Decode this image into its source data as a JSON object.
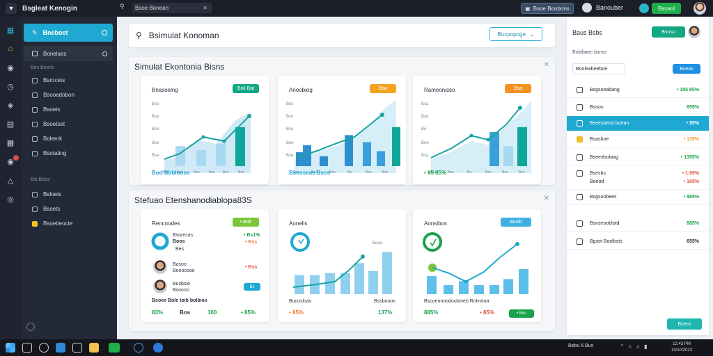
{
  "topbar": {
    "app_title": "Bsgleat Kenogin",
    "search_field": "Bsoe   Bonean",
    "button_1": "Bsoe Boobons",
    "user_name": "Banouber",
    "button_2": "Bsceol",
    "colors": {
      "accent_green": "#1fae4b",
      "bar_bg": "#1b1f2a"
    }
  },
  "sidebar": {
    "active_item": "Bneboet",
    "second_item": "Bonelaes",
    "group_1": "Bes Bnerls",
    "group_1_items": [
      "Bsrocets",
      "Bsooedobon",
      "Bsoets",
      "Bsoetset",
      "Boleerk",
      "Bsotating"
    ],
    "group_2": "Bsi  Boos",
    "group_2_items": [
      "Bsloets",
      "Bsoets",
      "Bsoetteocte"
    ]
  },
  "main": {
    "search_title": "Bsimulat Konoman",
    "dropdown_label": "Bucpopoge",
    "panel_1": {
      "title": "Simulat Ekontonia Bisns",
      "cards": [
        {
          "title": "Bnasoelng",
          "badge": "Bsk Bat",
          "badge_color": "#13a884",
          "footer": "Boo  Bbblooss",
          "y_ticks": [
            "Bso",
            "Bse",
            "Bse",
            "Bse",
            "Bse"
          ],
          "x_ticks": [
            "Bss",
            "Bss",
            "Bes",
            "Boe",
            "Bos",
            "Bse"
          ]
        },
        {
          "title": "Anoobiog",
          "badge": "Bsa",
          "badge_color": "#f3a220",
          "footer": "Bsosseas  Bsos",
          "y_ticks": [
            "Bos",
            "Bso",
            "Bse",
            "Boe",
            "Bse"
          ],
          "x_ticks": [
            "Bss",
            "Bos",
            "Boo",
            "Bo",
            "Bes",
            "Bse"
          ]
        },
        {
          "title": "Rameonisso",
          "badge": "Bsa",
          "badge_color": "#f39220",
          "footer": "• ¥5 85%",
          "y_ticks": [
            "Bsa",
            "Bse",
            "Bo",
            "Bee",
            "Bsa"
          ],
          "x_ticks": [
            "Bos",
            "Bos",
            "Bo",
            "Bee",
            "Bes",
            "Bos"
          ]
        }
      ]
    },
    "panel_2": {
      "title": "Stefuao Etenshanodiablopa83S",
      "cards": [
        {
          "title": "Rencnodes",
          "badge": "• Bob",
          "badge_color": "#7bc63a",
          "rows": [
            {
              "name": "Bsorecas",
              "sub": "Boos",
              "value": "• Bs1%",
              "value_color": "green",
              "value2": "• Bss",
              "value2_color": "orange",
              "extra": "Bes"
            },
            {
              "name": "Basoo",
              "sub": "Boooceao",
              "value": "• Bss",
              "value_color": "red"
            },
            {
              "name": "Busbsie",
              "sub": "Bsoooo",
              "value": "Bs",
              "value_color": "badge"
            }
          ],
          "foot_label": "Bsoee Bole toib bolbios",
          "foot_values": [
            "83%",
            "Bos",
            "100",
            "• 85%"
          ],
          "foot_colors": [
            "green",
            "dark",
            "green",
            "green"
          ]
        },
        {
          "title": "Aonelis",
          "badge": "",
          "badge_color": "",
          "chart_label": "Boeo",
          "foot_left": "Bucosloas",
          "foot_right": "Bssbooos",
          "foot_values": [
            "• 85%",
            "137%"
          ],
          "foot_colors": [
            "orange",
            "green"
          ]
        },
        {
          "title": "Aonsibos",
          "badge": "Bosib",
          "badge_color": "#3bb0e0",
          "foot_left": "Bscoennoodouloneb Rolvotoa",
          "foot_values": [
            "885%",
            "• 85%",
            "• Bos"
          ],
          "foot_colors": [
            "green",
            "red",
            "badge"
          ]
        }
      ]
    }
  },
  "chart_data": [
    {
      "type": "bar",
      "title": "Bnasoelng",
      "series": [
        {
          "values": [
            40,
            32,
            45,
            78
          ]
        },
        {
          "values": [
            10,
            24,
            42,
            52,
            86
          ]
        }
      ]
    },
    {
      "type": "bar",
      "title": "Anoobiog",
      "series": [
        {
          "values": [
            28,
            20,
            62,
            48,
            30,
            42,
            78
          ]
        },
        {
          "values": [
            20,
            28,
            32,
            38,
            62,
            70,
            86,
            98
          ]
        }
      ]
    },
    {
      "type": "bar",
      "title": "Rameonisso",
      "series": [
        {
          "values": [
            68,
            40,
            78
          ]
        },
        {
          "values": [
            10,
            24,
            38,
            62,
            52,
            90
          ]
        }
      ]
    },
    {
      "type": "bar",
      "title": "Aonelis",
      "series": [
        {
          "values": [
            38,
            38,
            42,
            42,
            62,
            46,
            84,
            24,
            40
          ]
        },
        {
          "values": [
            14,
            14,
            22,
            48,
            62
          ]
        }
      ]
    },
    {
      "type": "bar",
      "title": "Aonsibos",
      "series": [
        {
          "values": [
            36,
            18,
            26,
            18,
            18,
            30,
            50
          ]
        },
        {
          "values": [
            24,
            18,
            34,
            50,
            60,
            82
          ]
        }
      ]
    }
  ],
  "right_panel": {
    "title": "Baus Bsbs",
    "button": "Bsnsu",
    "subtitle": "Bolobaec bsnss",
    "field": "Booleabeeboe",
    "button2": "Bceas",
    "rows": [
      {
        "label": "Bsgsoeabang",
        "value": "• 195 85%",
        "color": "green",
        "selected": false
      },
      {
        "label": "Bsnos",
        "value": "855%",
        "color": "green",
        "selected": false
      },
      {
        "label": "Bseesbeoo boean",
        "value": "• $5%",
        "color": "white",
        "selected": true
      },
      {
        "label": "Bsasboe",
        "value": "• 135%",
        "color": "orange",
        "selected": false
      },
      {
        "label": "Bseedoolaag",
        "value": "• 1355%",
        "color": "green",
        "selected": false
      },
      {
        "label": "Bsesbs",
        "value": "• 1.95%",
        "color": "red",
        "selected": false
      },
      {
        "label": "Boeod",
        "value": "• 165%",
        "color": "red",
        "selected": false
      },
      {
        "label": "Bsgsoobees",
        "value": "• $85%",
        "color": "green",
        "selected": false
      },
      {
        "label": "Bsnseooblotd",
        "value": "885%",
        "color": "green",
        "selected": false
      },
      {
        "label": "Bgsot Boolbsts",
        "value": "655%",
        "color": "dark",
        "selected": false
      }
    ],
    "button3": "Bsess"
  },
  "taskbar": {
    "tray_text": "Bebu 6 Bus",
    "clock_1": "12:43 PM",
    "clock_2": "10/10/2023"
  }
}
